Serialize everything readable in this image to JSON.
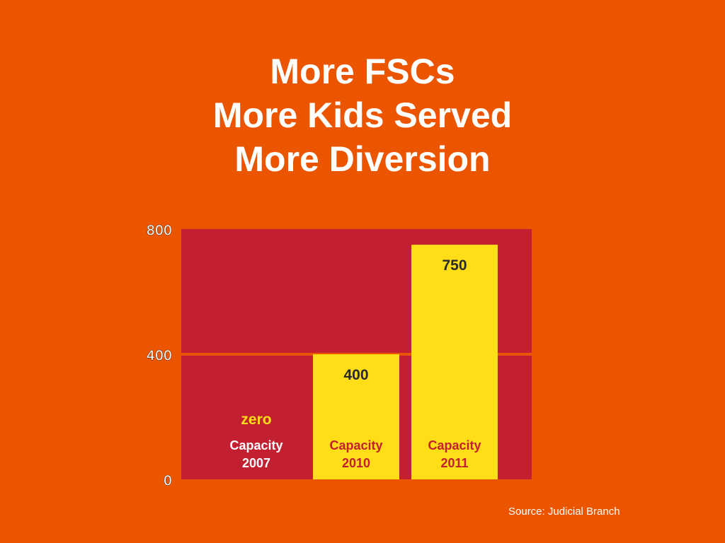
{
  "slide": {
    "title_lines": [
      "More FSCs",
      "More Kids Served",
      "More Diversion"
    ],
    "source": "Source: Judicial Branch"
  },
  "chart_data": {
    "type": "bar",
    "categories": [
      "Capacity 2007",
      "Capacity 2010",
      "Capacity 2011"
    ],
    "category_lines": [
      [
        "Capacity",
        "2007"
      ],
      [
        "Capacity",
        "2010"
      ],
      [
        "Capacity",
        "2011"
      ]
    ],
    "values": [
      0,
      400,
      750
    ],
    "data_labels": [
      "zero",
      "400",
      "750"
    ],
    "yticks": [
      0,
      400,
      800
    ],
    "ylim": [
      0,
      800
    ],
    "grid": true,
    "colors": {
      "background": "#ec5500",
      "plot": "#c21f30",
      "bar": "#ffdd17",
      "gridline": "#ec5500",
      "label_on_plot": "#ffffff",
      "zero_label": "#ffdd17",
      "label_on_bar": "#c21f30",
      "value_label": "#2a2a2a",
      "tick": "#ffffff"
    }
  }
}
